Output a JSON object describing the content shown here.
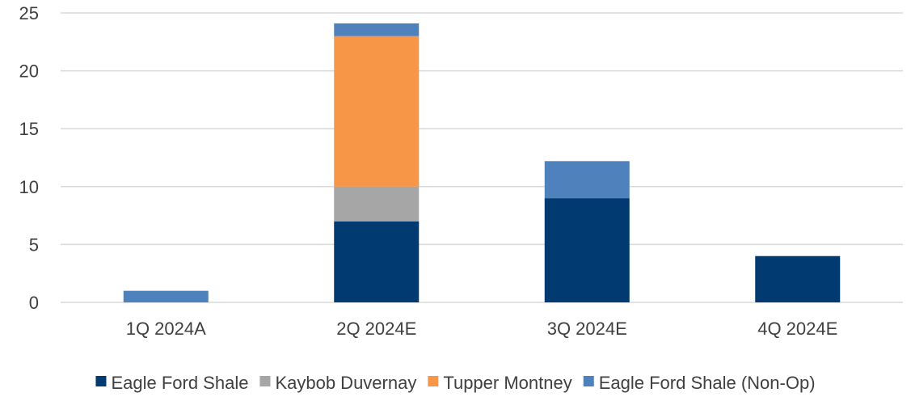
{
  "chart_data": {
    "type": "bar",
    "stacked": true,
    "categories": [
      "1Q 2024A",
      "2Q 2024E",
      "3Q 2024E",
      "4Q 2024E"
    ],
    "series": [
      {
        "name": "Eagle Ford Shale",
        "color": "#003a70",
        "values": [
          0,
          7,
          9,
          4
        ]
      },
      {
        "name": "Kaybob Duvernay",
        "color": "#a6a6a6",
        "values": [
          0,
          3,
          0,
          0
        ]
      },
      {
        "name": "Tupper Montney",
        "color": "#f79646",
        "values": [
          0,
          13,
          0,
          0
        ]
      },
      {
        "name": "Eagle Ford Shale (Non-Op)",
        "color": "#4f81bd",
        "values": [
          1,
          1.1,
          3.2,
          0
        ]
      }
    ],
    "ylim": [
      0,
      25
    ],
    "yticks": [
      0,
      5,
      10,
      15,
      20,
      25
    ],
    "grid": true,
    "legend": "bottom",
    "title": "",
    "xlabel": "",
    "ylabel": ""
  }
}
